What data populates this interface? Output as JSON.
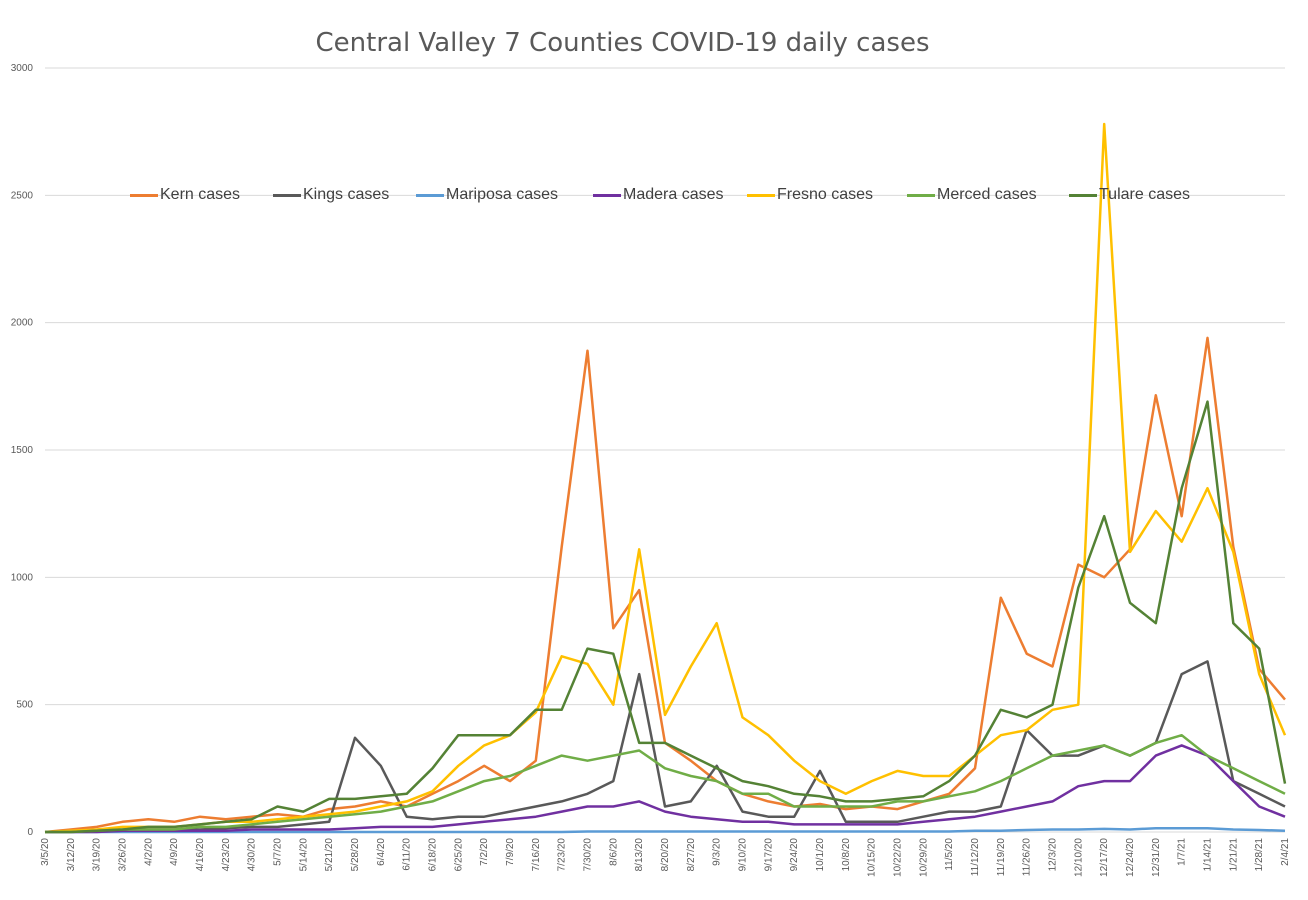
{
  "chart_data": {
    "type": "line",
    "title": "Central Valley 7 Counties COVID-19 daily cases",
    "xlabel": "",
    "ylabel": "",
    "ylim": [
      0,
      3000
    ],
    "yticks": [
      0,
      500,
      1000,
      1500,
      2000,
      2500,
      3000
    ],
    "grid": true,
    "legend_position": "top",
    "x_tick_labels": [
      "3/5/20",
      "3/12/20",
      "3/19/20",
      "3/26/20",
      "4/2/20",
      "4/9/20",
      "4/16/20",
      "4/23/20",
      "4/30/20",
      "5/7/20",
      "5/14/20",
      "5/21/20",
      "5/28/20",
      "6/4/20",
      "6/11/20",
      "6/18/20",
      "6/25/20",
      "7/2/20",
      "7/9/20",
      "7/16/20",
      "7/23/20",
      "7/30/20",
      "8/6/20",
      "8/13/20",
      "8/20/20",
      "8/27/20",
      "9/3/20",
      "9/10/20",
      "9/17/20",
      "9/24/20",
      "10/1/20",
      "10/8/20",
      "10/15/20",
      "10/22/20",
      "10/29/20",
      "11/5/20",
      "11/12/20",
      "11/19/20",
      "11/26/20",
      "12/3/20",
      "12/10/20",
      "12/17/20",
      "12/24/20",
      "12/31/20",
      "1/7/21",
      "1/14/21",
      "1/21/21",
      "1/28/21",
      "2/4/21"
    ],
    "series": [
      {
        "name": "Kern cases",
        "color": "#ED7D31",
        "values": [
          0,
          10,
          20,
          40,
          50,
          40,
          60,
          50,
          60,
          70,
          60,
          90,
          100,
          120,
          100,
          150,
          200,
          260,
          200,
          280,
          1120,
          1890,
          800,
          950,
          350,
          280,
          200,
          150,
          120,
          100,
          110,
          90,
          100,
          90,
          120,
          150,
          250,
          920,
          700,
          650,
          1050,
          1000,
          1110,
          1715,
          1240,
          1940,
          1120,
          640,
          520
        ]
      },
      {
        "name": "Kings cases",
        "color": "#595959",
        "values": [
          0,
          0,
          5,
          5,
          10,
          10,
          10,
          15,
          20,
          20,
          30,
          40,
          370,
          260,
          60,
          50,
          60,
          60,
          80,
          100,
          120,
          150,
          200,
          620,
          100,
          120,
          260,
          80,
          60,
          60,
          240,
          40,
          40,
          40,
          60,
          80,
          80,
          100,
          400,
          300,
          300,
          340,
          300,
          350,
          620,
          670,
          200,
          150,
          100
        ]
      },
      {
        "name": "Mariposa cases",
        "color": "#5B9BD5",
        "values": [
          0,
          0,
          0,
          0,
          0,
          0,
          0,
          0,
          0,
          0,
          0,
          0,
          0,
          0,
          0,
          0,
          0,
          0,
          0,
          0,
          0,
          2,
          2,
          2,
          2,
          2,
          2,
          2,
          2,
          2,
          2,
          2,
          2,
          2,
          2,
          2,
          5,
          5,
          8,
          10,
          10,
          12,
          10,
          15,
          15,
          15,
          10,
          8,
          5
        ]
      },
      {
        "name": "Madera cases",
        "color": "#7030A0",
        "values": [
          0,
          0,
          0,
          5,
          5,
          5,
          5,
          5,
          10,
          10,
          10,
          10,
          15,
          20,
          20,
          20,
          30,
          40,
          50,
          60,
          80,
          100,
          100,
          120,
          80,
          60,
          50,
          40,
          40,
          30,
          30,
          30,
          30,
          30,
          40,
          50,
          60,
          80,
          100,
          120,
          180,
          200,
          200,
          300,
          340,
          300,
          200,
          100,
          60
        ]
      },
      {
        "name": "Fresno cases",
        "color": "#FFC000",
        "values": [
          0,
          5,
          10,
          20,
          20,
          20,
          30,
          40,
          40,
          50,
          60,
          70,
          80,
          100,
          120,
          160,
          260,
          340,
          380,
          470,
          690,
          660,
          500,
          1110,
          460,
          650,
          820,
          450,
          380,
          280,
          200,
          150,
          200,
          240,
          220,
          220,
          300,
          380,
          400,
          480,
          500,
          2780,
          1100,
          1260,
          1140,
          1350,
          1100,
          620,
          380
        ]
      },
      {
        "name": "Merced cases",
        "color": "#70AD47",
        "values": [
          0,
          0,
          5,
          10,
          10,
          10,
          20,
          20,
          30,
          40,
          50,
          60,
          70,
          80,
          100,
          120,
          160,
          200,
          220,
          260,
          300,
          280,
          300,
          320,
          250,
          220,
          200,
          150,
          150,
          100,
          100,
          100,
          100,
          120,
          120,
          140,
          160,
          200,
          250,
          300,
          320,
          340,
          300,
          350,
          380,
          300,
          250,
          200,
          150
        ]
      },
      {
        "name": "Tulare cases",
        "color": "#548235",
        "values": [
          0,
          0,
          5,
          10,
          20,
          20,
          30,
          40,
          50,
          100,
          80,
          130,
          130,
          140,
          150,
          250,
          380,
          380,
          380,
          480,
          480,
          720,
          700,
          350,
          350,
          300,
          250,
          200,
          180,
          150,
          140,
          120,
          120,
          130,
          140,
          200,
          300,
          480,
          450,
          500,
          960,
          1240,
          900,
          820,
          1350,
          1690,
          820,
          720,
          190
        ]
      }
    ]
  }
}
